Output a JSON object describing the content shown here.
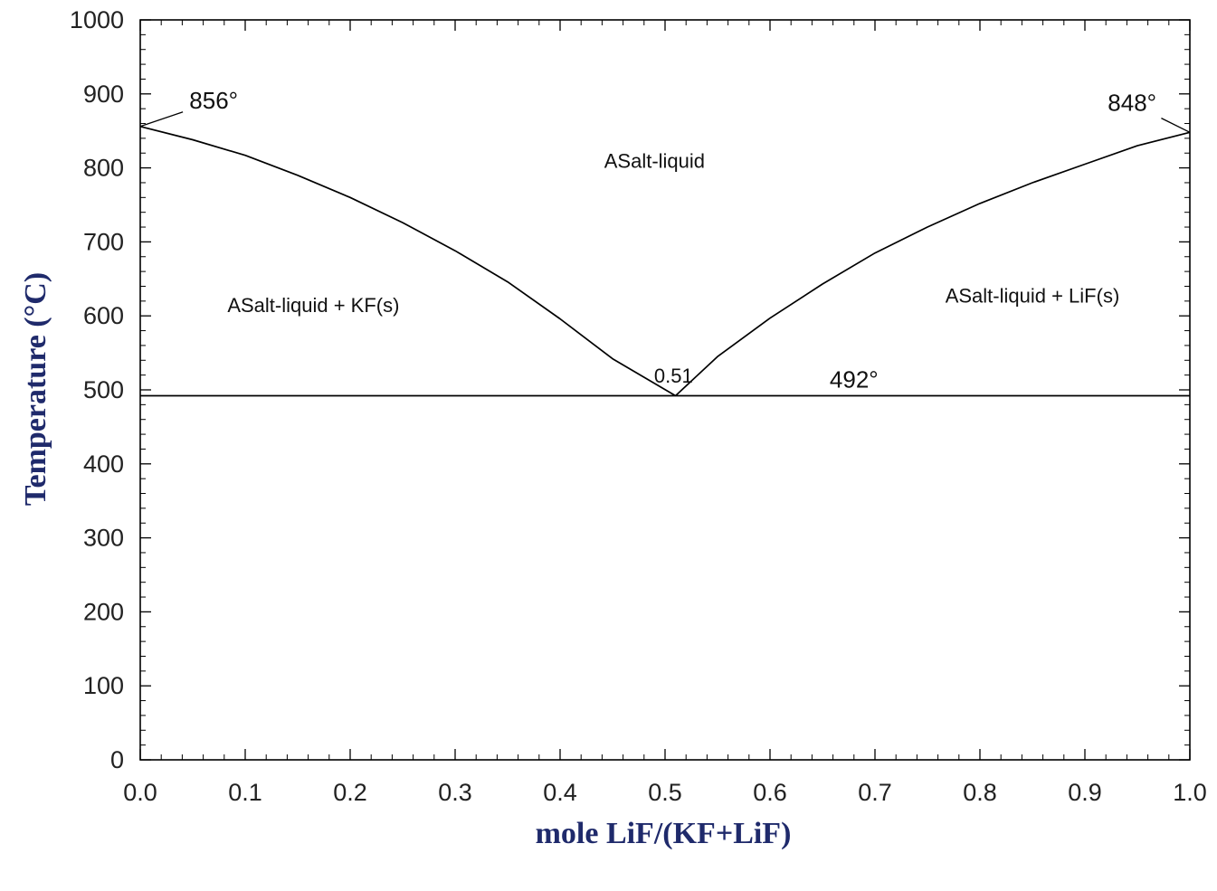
{
  "chart_data": {
    "type": "line",
    "xlabel": "mole LiF/(KF+LiF)",
    "ylabel": "Temperature (°C)",
    "xlim": [
      0.0,
      1.0
    ],
    "ylim": [
      0,
      1000
    ],
    "x_ticks": [
      "0.0",
      "0.1",
      "0.2",
      "0.3",
      "0.4",
      "0.5",
      "0.6",
      "0.7",
      "0.8",
      "0.9",
      "1.0"
    ],
    "y_ticks": [
      "0",
      "100",
      "200",
      "300",
      "400",
      "500",
      "600",
      "700",
      "800",
      "900",
      "1000"
    ],
    "grid": false,
    "colors": {
      "axis_title": "#1f2a6b",
      "line": "#000000"
    },
    "series": [
      {
        "x": [
          0.0,
          0.05,
          0.1,
          0.15,
          0.2,
          0.25,
          0.3,
          0.35,
          0.4,
          0.45,
          0.51
        ],
        "y": [
          856,
          838,
          817,
          790,
          760,
          726,
          688,
          646,
          596,
          542,
          492
        ]
      },
      {
        "x": [
          0.51,
          0.55,
          0.6,
          0.65,
          0.7,
          0.75,
          0.8,
          0.85,
          0.9,
          0.95,
          1.0
        ],
        "y": [
          492,
          545,
          597,
          643,
          685,
          720,
          752,
          780,
          805,
          830,
          848
        ]
      },
      {
        "x": [
          0.0,
          1.0
        ],
        "y": [
          492,
          492
        ]
      }
    ],
    "regions": [
      {
        "label": "ASalt-liquid",
        "x": 0.49,
        "y": 800
      },
      {
        "label": "ASalt-liquid + KF(s)",
        "x": 0.165,
        "y": 605
      },
      {
        "label": "ASalt-liquid + LiF(s)",
        "x": 0.85,
        "y": 618
      }
    ],
    "annotations": [
      {
        "text": "856°",
        "x": 0.07,
        "y": 880,
        "point_x": 0.0,
        "point_y": 856
      },
      {
        "text": "848°",
        "x": 0.945,
        "y": 877,
        "point_x": 1.0,
        "point_y": 848
      },
      {
        "text": "0.51",
        "x": 0.508,
        "y": 510,
        "point_x": 0.51,
        "point_y": 492
      },
      {
        "text": "492°",
        "x": 0.68,
        "y": 503
      }
    ]
  }
}
